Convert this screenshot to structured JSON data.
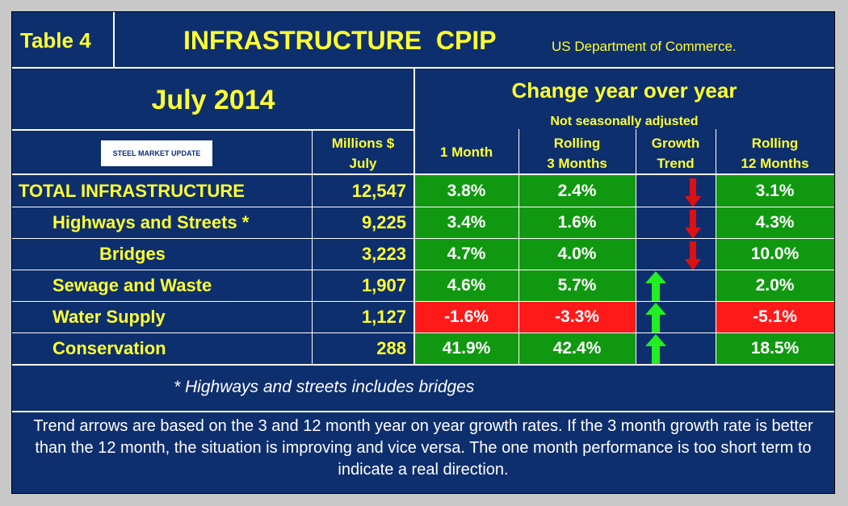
{
  "header": {
    "table_label": "Table 4",
    "title": "INFRASTRUCTURE  CPIP",
    "source": "US Department of Commerce."
  },
  "period": "July 2014",
  "change_heading": "Change year over year",
  "not_adjusted": "Not seasonally adjusted",
  "logo_text": "STEEL MARKET UPDATE",
  "columns": {
    "millions_line1": "Millions $",
    "millions_line2": "July",
    "one_month": "1 Month",
    "rolling3_line1": "Rolling",
    "rolling3_line2": "3 Months",
    "growth_line1": "Growth",
    "growth_line2": "Trend",
    "rolling12_line1": "Rolling",
    "rolling12_line2": "12 Months"
  },
  "rows": [
    {
      "name": "TOTAL INFRASTRUCTURE",
      "millions": "12,547",
      "m1": "3.8%",
      "m3": "2.4%",
      "m12": "3.1%",
      "m1_color": "green",
      "m3_color": "green",
      "m12_color": "green",
      "trend": "down"
    },
    {
      "name": "Highways and Streets *",
      "millions": "9,225",
      "m1": "3.4%",
      "m3": "1.6%",
      "m12": "4.3%",
      "m1_color": "green",
      "m3_color": "green",
      "m12_color": "green",
      "trend": "down"
    },
    {
      "name": "Bridges",
      "millions": "3,223",
      "m1": "4.7%",
      "m3": "4.0%",
      "m12": "10.0%",
      "m1_color": "green",
      "m3_color": "green",
      "m12_color": "green",
      "trend": "down"
    },
    {
      "name": "Sewage and Waste",
      "millions": "1,907",
      "m1": "4.6%",
      "m3": "5.7%",
      "m12": "2.0%",
      "m1_color": "green",
      "m3_color": "green",
      "m12_color": "green",
      "trend": "up"
    },
    {
      "name": "Water Supply",
      "millions": "1,127",
      "m1": "-1.6%",
      "m3": "-3.3%",
      "m12": "-5.1%",
      "m1_color": "red",
      "m3_color": "red",
      "m12_color": "red",
      "trend": "up"
    },
    {
      "name": "Conservation",
      "millions": "288",
      "m1": "41.9%",
      "m3": "42.4%",
      "m12": "18.5%",
      "m1_color": "green",
      "m3_color": "green",
      "m12_color": "green",
      "trend": "up"
    }
  ],
  "footnote": "* Highways and streets includes bridges",
  "explanation": "Trend arrows are based on the 3 and 12 month year on year growth rates. If the 3 month growth rate is better than the 12 month, the situation is improving and vice versa. The one month performance is too short term to indicate a real direction.",
  "colors": {
    "background": "#0e2f6e",
    "text_yellow": "#ffff33",
    "positive": "#109910",
    "negative": "#ff1a1a",
    "arrow_up": "#22ee22",
    "arrow_down": "#dd1111"
  }
}
